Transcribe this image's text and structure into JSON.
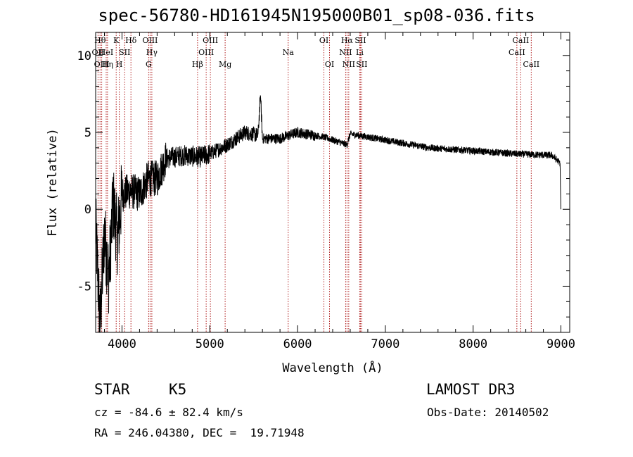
{
  "chart_data": {
    "type": "line",
    "title": "spec-56780-HD161945N195000B01_sp08-036.fits",
    "xlabel": "Wavelength (Å)",
    "ylabel": "Flux (relative)",
    "xlim": [
      3700,
      9100
    ],
    "ylim": [
      -8,
      11.5
    ],
    "xticks": [
      4000,
      5000,
      6000,
      7000,
      8000,
      9000
    ],
    "yticks": [
      -5,
      0,
      5,
      10
    ],
    "spectrum_anchors": [
      {
        "x": 3700,
        "y": -1.0
      },
      {
        "x": 3750,
        "y": -7.5
      },
      {
        "x": 3800,
        "y": -1.5
      },
      {
        "x": 3850,
        "y": -4.5
      },
      {
        "x": 3900,
        "y": 0.5
      },
      {
        "x": 3950,
        "y": -2.0
      },
      {
        "x": 4000,
        "y": 1.0
      },
      {
        "x": 4100,
        "y": 1.2
      },
      {
        "x": 4200,
        "y": 1.0
      },
      {
        "x": 4300,
        "y": 2.0
      },
      {
        "x": 4400,
        "y": 2.0
      },
      {
        "x": 4500,
        "y": 3.3
      },
      {
        "x": 4700,
        "y": 3.5
      },
      {
        "x": 4900,
        "y": 3.4
      },
      {
        "x": 5000,
        "y": 3.6
      },
      {
        "x": 5200,
        "y": 4.2
      },
      {
        "x": 5400,
        "y": 5.0
      },
      {
        "x": 5550,
        "y": 4.8
      },
      {
        "x": 5577,
        "y": 7.5
      },
      {
        "x": 5600,
        "y": 4.6
      },
      {
        "x": 5800,
        "y": 4.6
      },
      {
        "x": 6000,
        "y": 5.0
      },
      {
        "x": 6300,
        "y": 4.7
      },
      {
        "x": 6563,
        "y": 4.2
      },
      {
        "x": 6600,
        "y": 4.9
      },
      {
        "x": 7000,
        "y": 4.5
      },
      {
        "x": 7500,
        "y": 4.0
      },
      {
        "x": 8000,
        "y": 3.8
      },
      {
        "x": 8500,
        "y": 3.6
      },
      {
        "x": 8900,
        "y": 3.5
      },
      {
        "x": 8990,
        "y": 3.0
      },
      {
        "x": 9000,
        "y": 0.0
      }
    ],
    "spectral_lines": [
      {
        "label": "OII",
        "x": 3727,
        "row": 2
      },
      {
        "label": "Hθ",
        "x": 3750,
        "row": 1
      },
      {
        "label": "OIII",
        "x": 3769,
        "row": 3
      },
      {
        "label": "HeI",
        "x": 3820,
        "row": 2
      },
      {
        "label": "Hη",
        "x": 3835,
        "row": 3
      },
      {
        "label": "K",
        "x": 3934,
        "row": 1
      },
      {
        "label": "H",
        "x": 3969,
        "row": 3
      },
      {
        "label": "SII",
        "x": 4030,
        "row": 2
      },
      {
        "label": "Hδ",
        "x": 4102,
        "row": 1
      },
      {
        "label": "OIII",
        "x": 4320,
        "row": 1
      },
      {
        "label": "Hγ",
        "x": 4340,
        "row": 2
      },
      {
        "label": "G",
        "x": 4304,
        "row": 3
      },
      {
        "label": "Hβ",
        "x": 4861,
        "row": 3
      },
      {
        "label": "OIII",
        "x": 4959,
        "row": 2
      },
      {
        "label": "OIII",
        "x": 5007,
        "row": 1
      },
      {
        "label": "Mg",
        "x": 5175,
        "row": 3
      },
      {
        "label": "Na",
        "x": 5893,
        "row": 2
      },
      {
        "label": "OI",
        "x": 6300,
        "row": 1
      },
      {
        "label": "OI",
        "x": 6364,
        "row": 3
      },
      {
        "label": "NII",
        "x": 6548,
        "row": 2
      },
      {
        "label": "Hα",
        "x": 6563,
        "row": 1
      },
      {
        "label": "NII",
        "x": 6583,
        "row": 3
      },
      {
        "label": "Li",
        "x": 6708,
        "row": 2
      },
      {
        "label": "SII",
        "x": 6716,
        "row": 1
      },
      {
        "label": "SII",
        "x": 6731,
        "row": 3
      },
      {
        "label": "CaII",
        "x": 8498,
        "row": 2
      },
      {
        "label": "CaII",
        "x": 8542,
        "row": 1
      },
      {
        "label": "CaII",
        "x": 8662,
        "row": 3
      }
    ],
    "line_color": "#b22222",
    "grid": false
  },
  "info": {
    "object_class": "STAR",
    "subclass": "K5",
    "survey": "LAMOST DR3",
    "redshift": "cz = -84.6 ± 82.4 km/s",
    "obs_date": "Obs-Date: 20140502",
    "coords": "RA = 246.04380, DEC =  19.71948"
  }
}
